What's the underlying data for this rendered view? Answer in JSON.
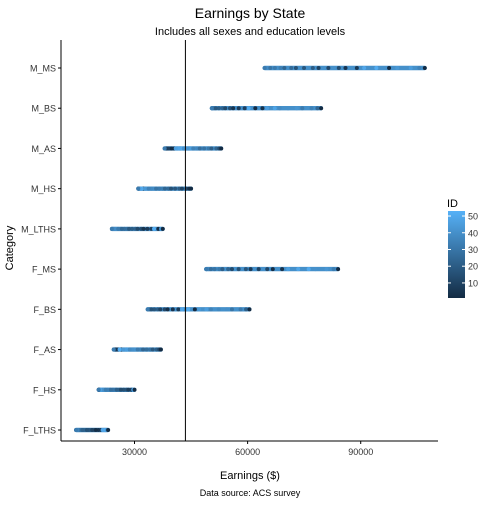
{
  "chart_data": {
    "type": "scatter",
    "title": "Earnings by State",
    "subtitle": "Includes all sexes and education levels",
    "xlabel": "Earnings ($)",
    "ylabel": "Category",
    "caption": "Data source: ACS survey",
    "xlim": [
      10500,
      110500
    ],
    "x_ticks": [
      30000,
      60000,
      90000
    ],
    "x_tick_labels": [
      "30000",
      "60000",
      "90000"
    ],
    "categories": [
      "F_LTHS",
      "F_HS",
      "F_AS",
      "F_BS",
      "F_MS",
      "M_LTHS",
      "M_HS",
      "M_AS",
      "M_BS",
      "M_MS"
    ],
    "vline_x": 43500,
    "grid": false,
    "legend": {
      "title": "ID",
      "position": "right",
      "range": [
        1,
        53
      ],
      "ticks": [
        10,
        20,
        30,
        40,
        50
      ],
      "tick_labels": [
        "10",
        "20",
        "30",
        "40",
        "50"
      ],
      "low_color": "#132B43",
      "high_color": "#56B1F7"
    },
    "ranges": [
      {
        "category": "F_LTHS",
        "min": 14500,
        "max": 23000
      },
      {
        "category": "F_HS",
        "min": 20500,
        "max": 30000
      },
      {
        "category": "F_AS",
        "min": 24500,
        "max": 37000
      },
      {
        "category": "F_BS",
        "min": 33500,
        "max": 60500
      },
      {
        "category": "F_MS",
        "min": 49000,
        "max": 84000
      },
      {
        "category": "M_LTHS",
        "min": 24000,
        "max": 37500
      },
      {
        "category": "M_HS",
        "min": 31000,
        "max": 45000
      },
      {
        "category": "M_AS",
        "min": 38000,
        "max": 53000
      },
      {
        "category": "M_BS",
        "min": 50500,
        "max": 79500
      },
      {
        "category": "M_MS",
        "min": 64500,
        "max": 107000
      }
    ]
  }
}
